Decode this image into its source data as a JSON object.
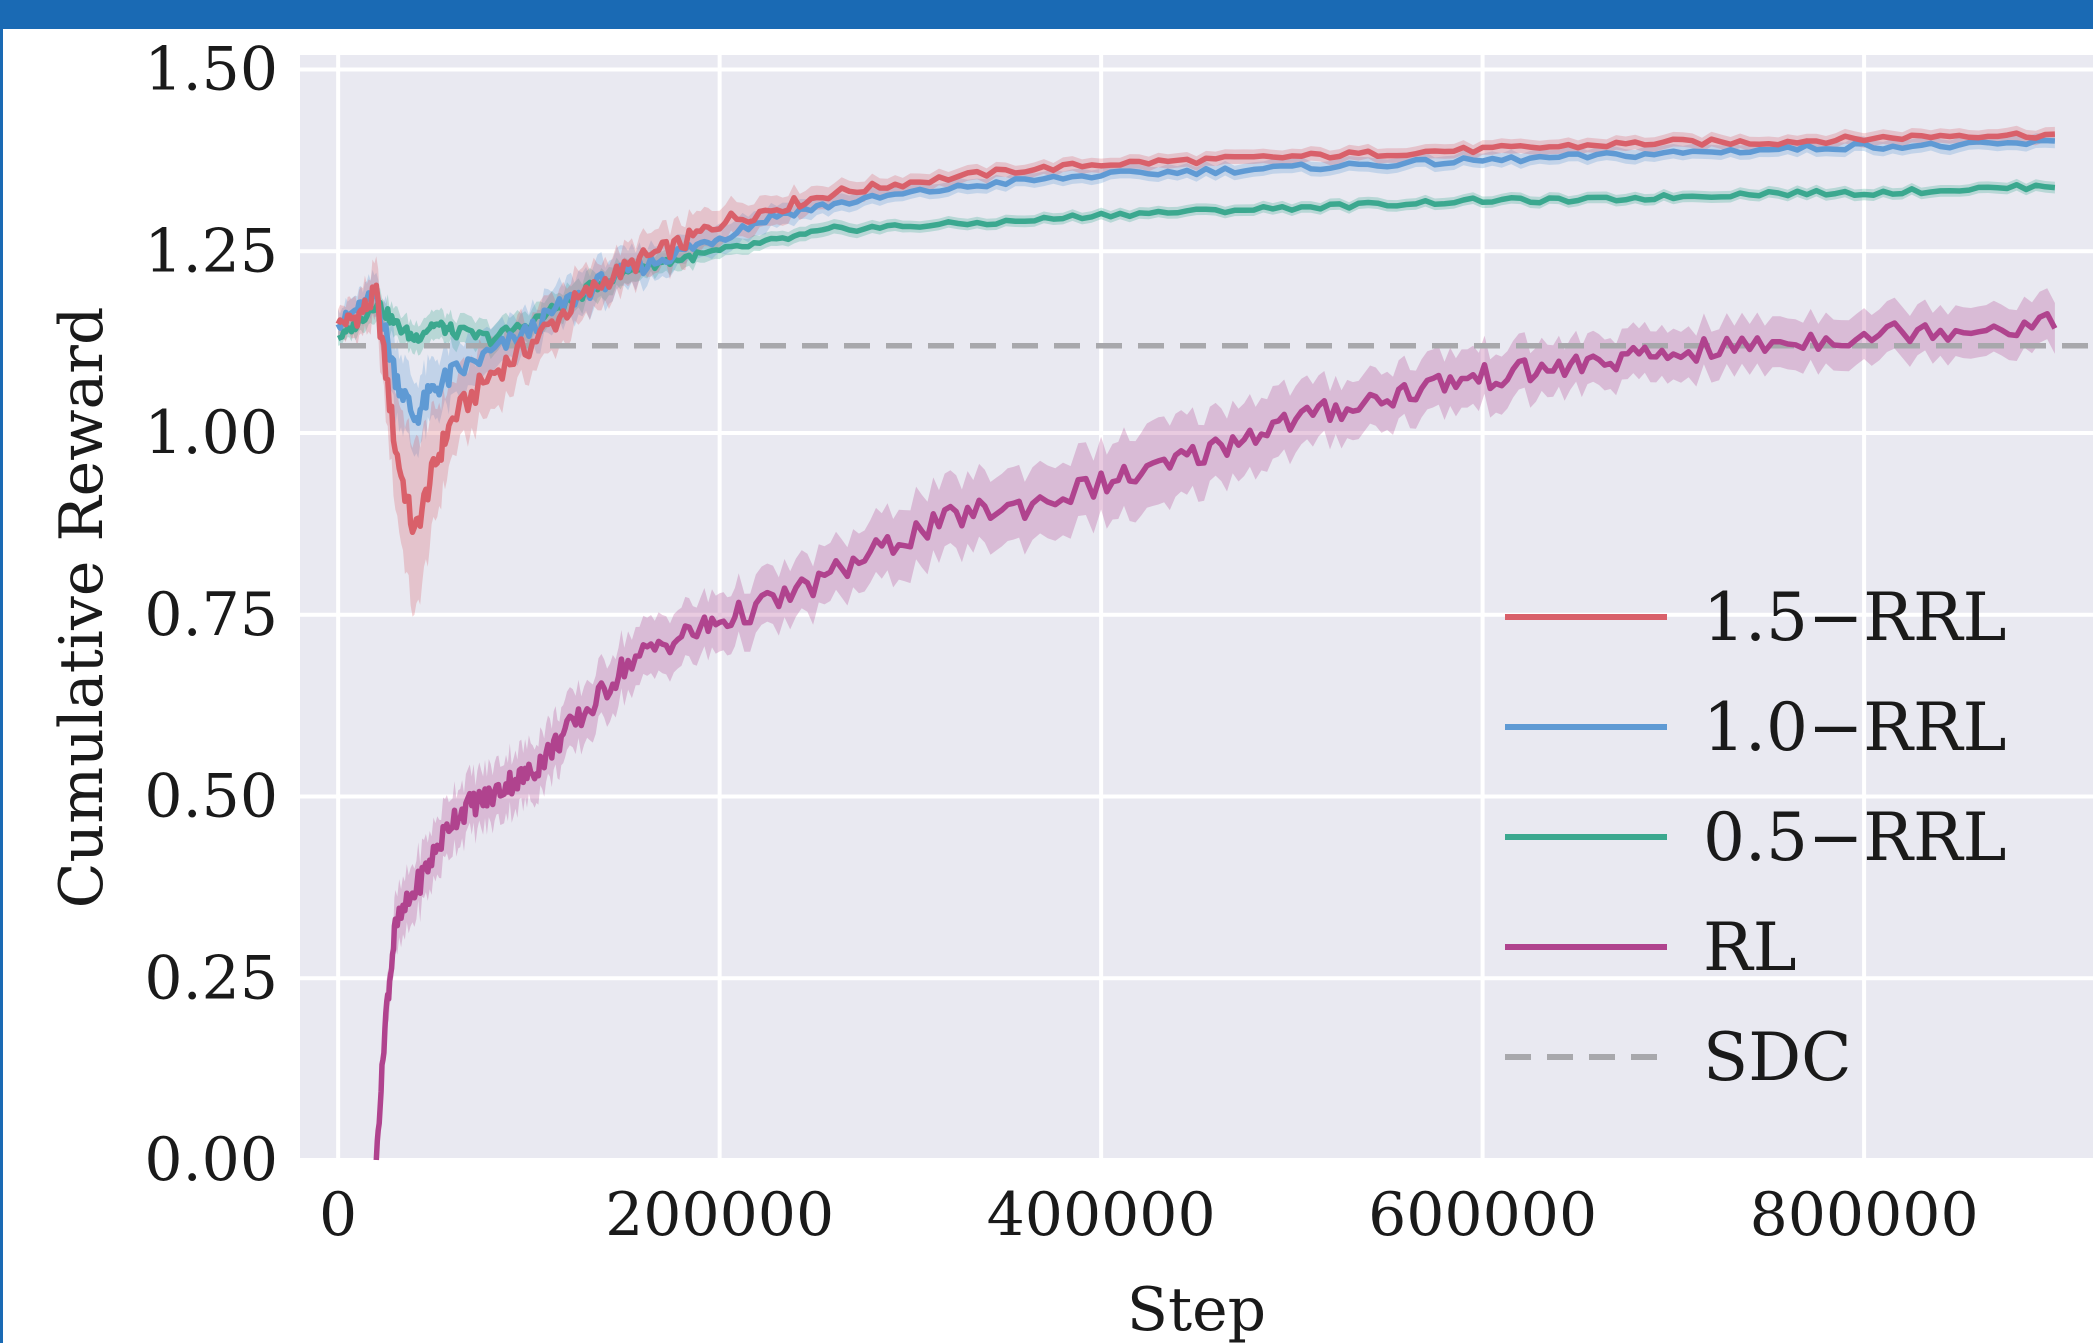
{
  "chart_data": {
    "type": "line",
    "title": "",
    "xlabel": "Step",
    "ylabel": "Cumulative Reward",
    "xlim": [
      -20000,
      920000
    ],
    "ylim": [
      0.0,
      1.52
    ],
    "xticks": [
      0,
      200000,
      400000,
      600000,
      800000
    ],
    "xtick_labels": [
      "0",
      "200000",
      "400000",
      "600000",
      "800000"
    ],
    "yticks": [
      0.0,
      0.25,
      0.5,
      0.75,
      1.0,
      1.25,
      1.5
    ],
    "ytick_labels": [
      "0.00",
      "0.25",
      "0.50",
      "0.75",
      "1.00",
      "1.25",
      "1.50"
    ],
    "grid": true,
    "legend_position": "lower-right",
    "background_color": "#e9e9f1",
    "series": [
      {
        "name": "1.5−RRL",
        "color": "#d9606a",
        "x": [
          0,
          10000,
          20000,
          30000,
          40000,
          50000,
          60000,
          80000,
          100000,
          120000,
          140000,
          160000,
          180000,
          200000,
          230000,
          260000,
          300000,
          350000,
          400000,
          450000,
          500000,
          550000,
          600000,
          650000,
          700000,
          750000,
          800000,
          850000,
          900000
        ],
        "y": [
          1.15,
          1.16,
          1.19,
          0.98,
          0.86,
          0.95,
          1.02,
          1.08,
          1.12,
          1.17,
          1.21,
          1.24,
          1.26,
          1.29,
          1.31,
          1.33,
          1.345,
          1.36,
          1.37,
          1.375,
          1.38,
          1.385,
          1.39,
          1.395,
          1.4,
          1.4,
          1.405,
          1.41,
          1.41
        ],
        "band": [
          0.02,
          0.03,
          0.04,
          0.08,
          0.12,
          0.08,
          0.05,
          0.05,
          0.04,
          0.04,
          0.03,
          0.03,
          0.03,
          0.025,
          0.02,
          0.015,
          0.012,
          0.01,
          0.01,
          0.01,
          0.01,
          0.01,
          0.01,
          0.01,
          0.01,
          0.01,
          0.01,
          0.01,
          0.01
        ]
      },
      {
        "name": "1.0−RRL",
        "color": "#5f9ad4",
        "x": [
          0,
          10000,
          20000,
          30000,
          40000,
          50000,
          60000,
          80000,
          100000,
          120000,
          140000,
          160000,
          180000,
          200000,
          230000,
          260000,
          300000,
          350000,
          400000,
          450000,
          500000,
          550000,
          600000,
          650000,
          700000,
          750000,
          800000,
          850000,
          900000
        ],
        "y": [
          1.15,
          1.17,
          1.19,
          1.08,
          1.02,
          1.06,
          1.08,
          1.11,
          1.14,
          1.18,
          1.21,
          1.23,
          1.25,
          1.27,
          1.3,
          1.315,
          1.33,
          1.345,
          1.355,
          1.36,
          1.365,
          1.37,
          1.375,
          1.38,
          1.385,
          1.39,
          1.395,
          1.395,
          1.4
        ],
        "band": [
          0.02,
          0.02,
          0.03,
          0.05,
          0.05,
          0.04,
          0.04,
          0.03,
          0.03,
          0.03,
          0.03,
          0.025,
          0.02,
          0.02,
          0.015,
          0.012,
          0.01,
          0.01,
          0.01,
          0.01,
          0.01,
          0.01,
          0.01,
          0.01,
          0.01,
          0.01,
          0.01,
          0.01,
          0.01
        ]
      },
      {
        "name": "0.5−RRL",
        "color": "#3ba88f",
        "x": [
          0,
          10000,
          20000,
          30000,
          40000,
          50000,
          60000,
          80000,
          100000,
          120000,
          140000,
          160000,
          180000,
          200000,
          230000,
          260000,
          300000,
          350000,
          400000,
          450000,
          500000,
          550000,
          600000,
          650000,
          700000,
          750000,
          800000,
          850000,
          900000
        ],
        "y": [
          1.13,
          1.15,
          1.18,
          1.15,
          1.13,
          1.15,
          1.14,
          1.13,
          1.15,
          1.18,
          1.21,
          1.23,
          1.24,
          1.25,
          1.265,
          1.28,
          1.285,
          1.29,
          1.3,
          1.305,
          1.31,
          1.315,
          1.32,
          1.32,
          1.325,
          1.33,
          1.33,
          1.335,
          1.34
        ],
        "band": [
          0.01,
          0.015,
          0.02,
          0.02,
          0.02,
          0.02,
          0.02,
          0.02,
          0.02,
          0.02,
          0.02,
          0.015,
          0.015,
          0.012,
          0.01,
          0.01,
          0.008,
          0.008,
          0.008,
          0.008,
          0.008,
          0.008,
          0.008,
          0.008,
          0.008,
          0.008,
          0.008,
          0.008,
          0.008
        ]
      },
      {
        "name": "RL",
        "color": "#b0438e",
        "x": [
          20000,
          25000,
          30000,
          40000,
          50000,
          60000,
          70000,
          80000,
          90000,
          100000,
          110000,
          120000,
          135000,
          150000,
          170000,
          190000,
          210000,
          240000,
          270000,
          300000,
          330000,
          360000,
          400000,
          430000,
          460000,
          490000,
          520000,
          550000,
          580000,
          610000,
          640000,
          670000,
          700000,
          740000,
          780000,
          820000,
          860000,
          900000
        ],
        "y": [
          0.0,
          0.2,
          0.32,
          0.37,
          0.42,
          0.47,
          0.49,
          0.5,
          0.52,
          0.53,
          0.56,
          0.59,
          0.63,
          0.68,
          0.71,
          0.73,
          0.75,
          0.78,
          0.82,
          0.86,
          0.89,
          0.9,
          0.93,
          0.95,
          0.98,
          1.01,
          1.03,
          1.05,
          1.07,
          1.08,
          1.09,
          1.1,
          1.11,
          1.12,
          1.13,
          1.14,
          1.145,
          1.15
        ],
        "band": [
          0.02,
          0.03,
          0.04,
          0.04,
          0.04,
          0.04,
          0.04,
          0.04,
          0.04,
          0.04,
          0.04,
          0.04,
          0.04,
          0.04,
          0.04,
          0.04,
          0.04,
          0.04,
          0.04,
          0.05,
          0.05,
          0.05,
          0.05,
          0.06,
          0.05,
          0.05,
          0.04,
          0.04,
          0.04,
          0.04,
          0.035,
          0.035,
          0.035,
          0.035,
          0.035,
          0.035,
          0.035,
          0.035
        ]
      }
    ],
    "reference_line": {
      "name": "SDC",
      "color": "#a8a8ac",
      "y": 1.12,
      "style": "dashed"
    }
  }
}
